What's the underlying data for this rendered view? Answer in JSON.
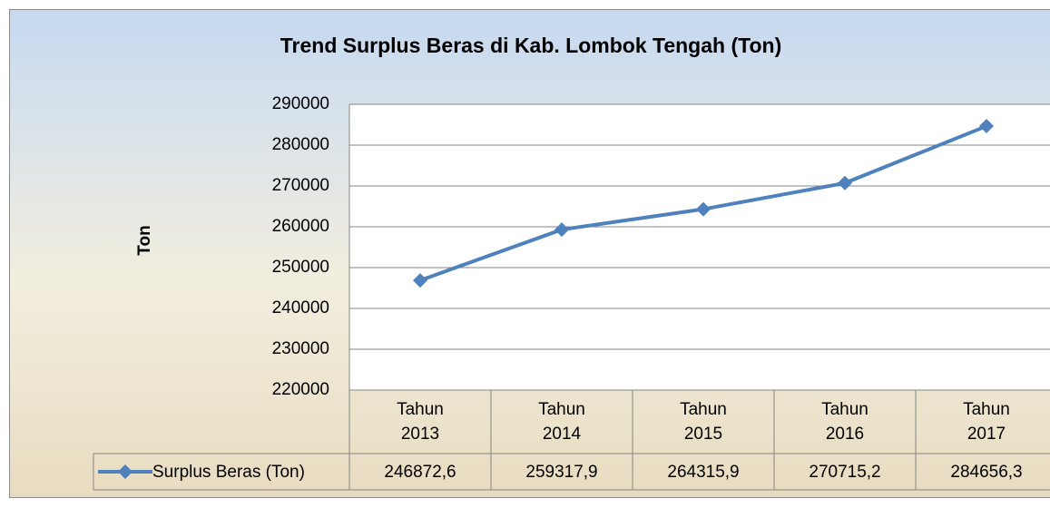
{
  "chart_data": {
    "type": "line",
    "title": "Trend Surplus Beras di Kab. Lombok Tengah (Ton)",
    "y_label": "Ton",
    "categories": [
      "Tahun 2013",
      "Tahun 2014",
      "Tahun 2015",
      "Tahun 2016",
      "Tahun 2017"
    ],
    "series": [
      {
        "name": "Surplus Beras (Ton)",
        "color": "#4f81bd",
        "values": [
          246872.6,
          259317.9,
          264315.9,
          270715.2,
          284656.3
        ],
        "value_labels": [
          "246872,6",
          "259317,9",
          "264315,9",
          "270715,2",
          "284656,3"
        ]
      }
    ],
    "ylim": [
      220000,
      290000
    ],
    "yticks": [
      220000,
      230000,
      240000,
      250000,
      260000,
      270000,
      280000,
      290000
    ],
    "grid": true
  }
}
